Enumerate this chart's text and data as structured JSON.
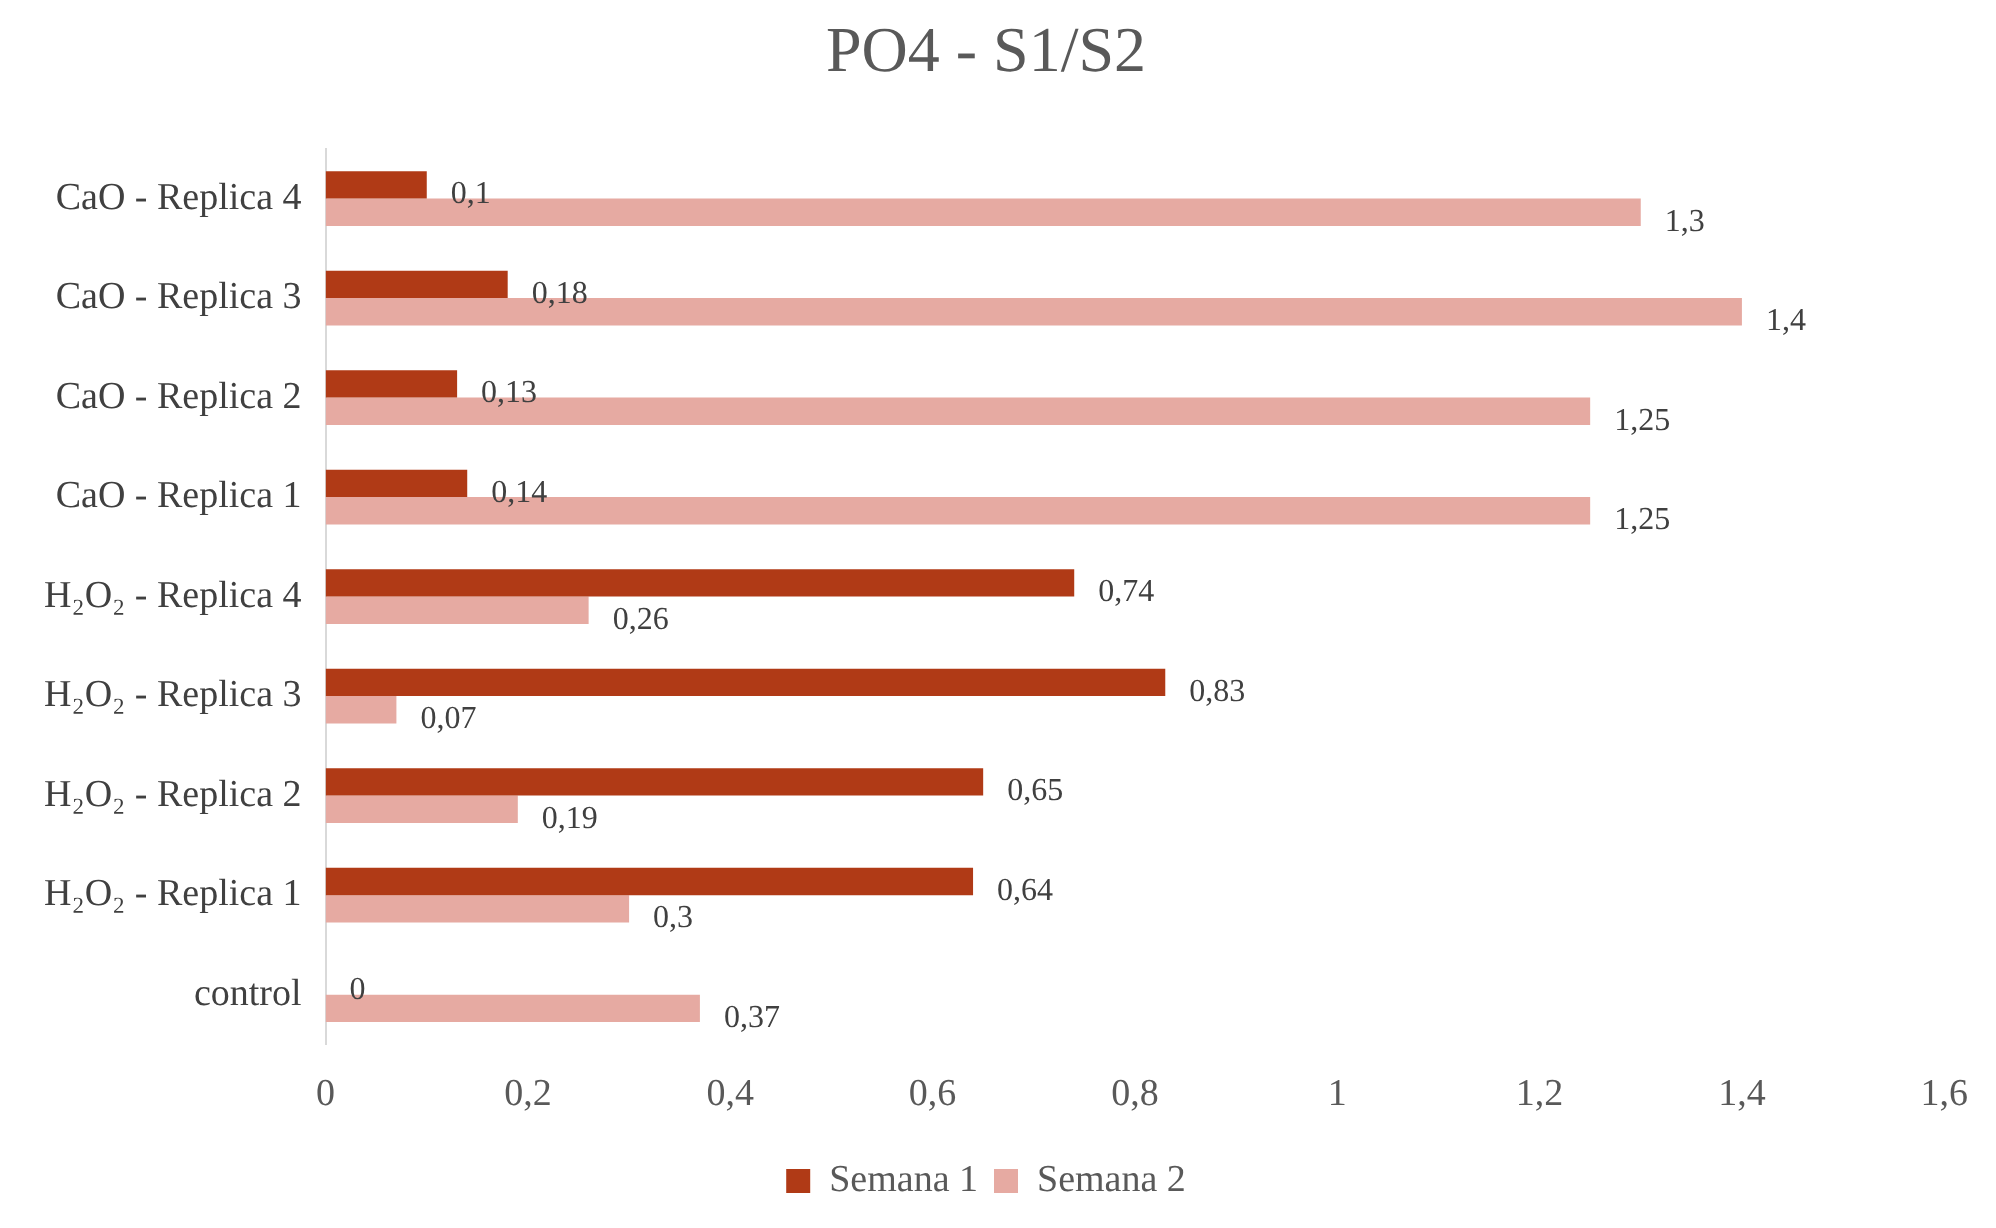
{
  "chart_data": {
    "type": "bar",
    "orientation": "horizontal",
    "title": "PO4 - S1/S2",
    "categories": [
      "CaO - Replica 4",
      "CaO - Replica 3",
      "CaO - Replica 2",
      "CaO - Replica 1",
      "H₂O₂ - Replica 4",
      "H₂O₂ - Replica 3",
      "H₂O₂ - Replica 2",
      "H₂O₂ - Replica 1",
      "control"
    ],
    "series": [
      {
        "name": "Semana 1",
        "color": "#b03a16",
        "values": [
          0.1,
          0.18,
          0.13,
          0.14,
          0.74,
          0.83,
          0.65,
          0.64,
          0
        ],
        "value_labels": [
          "0,1",
          "0,18",
          "0,13",
          "0,14",
          "0,74",
          "0,83",
          "0,65",
          "0,64",
          "0"
        ]
      },
      {
        "name": "Semana 2",
        "color": "#e6aaa2",
        "values": [
          1.3,
          1.4,
          1.25,
          1.25,
          0.26,
          0.07,
          0.19,
          0.3,
          0.37
        ],
        "value_labels": [
          "1,3",
          "1,4",
          "1,25",
          "1,25",
          "0,26",
          "0,07",
          "0,19",
          "0,3",
          "0,37"
        ]
      }
    ],
    "xlim": [
      0,
      1.6
    ],
    "xticks": [
      0,
      {
        "value": 0.2,
        "label": "0,2"
      },
      {
        "value": 0.4,
        "label": "0,4"
      },
      {
        "value": 0.6,
        "label": "0,6"
      },
      {
        "value": 0.8,
        "label": "0,8"
      },
      1,
      {
        "value": 1.2,
        "label": "1,2"
      },
      {
        "value": 1.4,
        "label": "1,4"
      },
      {
        "value": 1.6,
        "label": "1,6"
      }
    ],
    "grid": false,
    "legend": "bottom"
  }
}
